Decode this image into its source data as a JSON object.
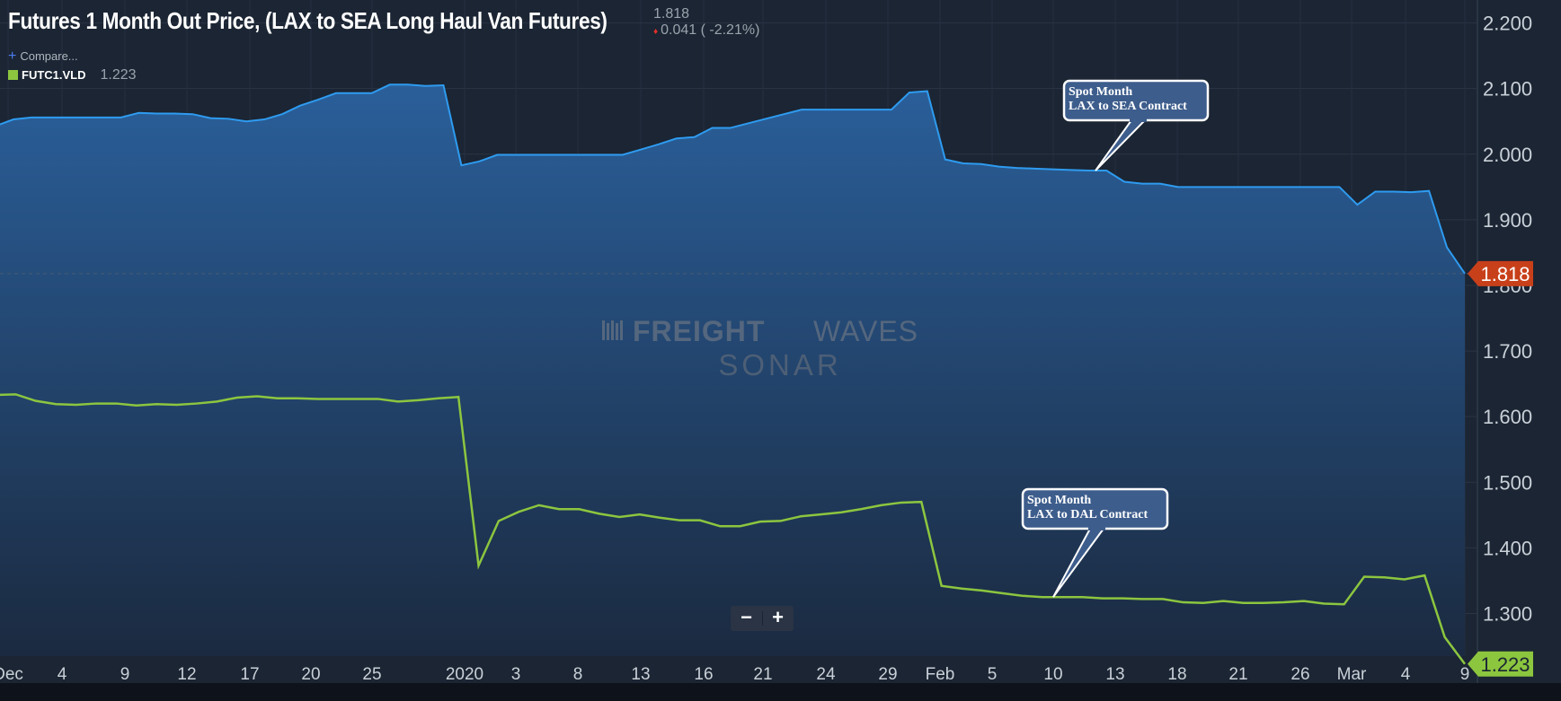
{
  "header": {
    "title": "Futures 1 Month Out Price, (LAX to SEA Long Haul Van Futures)",
    "last_price": "1.818",
    "change": "0.041 ( -2.21%)",
    "change_icon": "down-triangle-icon",
    "compare_label": "Compare...",
    "compare_icon": "plus-icon"
  },
  "legend": {
    "symbol": "FUTC1.VLD",
    "value": "1.223",
    "color": "#8cc63f"
  },
  "watermark": {
    "line1_bold": "FREIGHT",
    "line1_light": "WAVES",
    "line2": "SONAR"
  },
  "zoom": {
    "minus": "−",
    "plus": "+"
  },
  "chart_data": {
    "type": "area",
    "title": "Futures 1 Month Out Price, (LAX to SEA Long Haul Van Futures)",
    "ylim": [
      1.235,
      2.235
    ],
    "yticks": [
      1.3,
      1.4,
      1.5,
      1.6,
      1.7,
      1.8,
      1.9,
      2.0,
      2.1,
      2.2
    ],
    "ytick_labels": [
      "1.300",
      "1.400",
      "1.500",
      "1.600",
      "1.700",
      "1.800",
      "1.900",
      "2.000",
      "2.100",
      "2.200"
    ],
    "xtick_labels": [
      "Dec",
      "4",
      "9",
      "12",
      "17",
      "20",
      "25",
      "2020",
      "3",
      "8",
      "13",
      "16",
      "21",
      "24",
      "29",
      "Feb",
      "5",
      "10",
      "13",
      "18",
      "21",
      "26",
      "Mar",
      "4",
      "9"
    ],
    "grid": true,
    "colors": {
      "primary": "#2e9bf0",
      "secondary": "#8cc63f",
      "last_price_label": "#c8401a",
      "area_top": "#2a5f9a",
      "area_bottom": "#1b2a40"
    },
    "series": [
      {
        "role": "primary",
        "values": [
          2.043,
          2.053,
          2.056,
          2.056,
          2.056,
          2.056,
          2.056,
          2.056,
          2.063,
          2.062,
          2.062,
          2.061,
          2.055,
          2.054,
          2.05,
          2.053,
          2.061,
          2.074,
          2.083,
          2.093,
          2.093,
          2.093,
          2.106,
          2.106,
          2.104,
          2.105,
          1.983,
          1.989,
          1.999,
          1.999,
          1.999,
          1.999,
          1.999,
          1.999,
          1.999,
          1.999,
          2.007,
          2.015,
          2.024,
          2.026,
          2.04,
          2.04,
          2.047,
          2.054,
          2.061,
          2.068,
          2.068,
          2.068,
          2.068,
          2.068,
          2.068,
          2.094,
          2.096,
          1.992,
          1.986,
          1.985,
          1.981,
          1.979,
          1.978,
          1.977,
          1.976,
          1.975,
          1.975,
          1.958,
          1.955,
          1.955,
          1.95,
          1.95,
          1.95,
          1.95,
          1.95,
          1.95,
          1.95,
          1.95,
          1.95,
          1.95,
          1.923,
          1.943,
          1.943,
          1.942,
          1.944,
          1.858,
          1.818
        ]
      },
      {
        "role": "secondary",
        "values": [
          1.633,
          1.634,
          1.624,
          1.619,
          1.618,
          1.62,
          1.62,
          1.617,
          1.619,
          1.618,
          1.62,
          1.623,
          1.629,
          1.631,
          1.628,
          1.628,
          1.627,
          1.627,
          1.627,
          1.627,
          1.623,
          1.625,
          1.628,
          1.63,
          1.373,
          1.441,
          1.455,
          1.465,
          1.459,
          1.459,
          1.452,
          1.447,
          1.451,
          1.446,
          1.442,
          1.442,
          1.433,
          1.433,
          1.44,
          1.441,
          1.448,
          1.451,
          1.454,
          1.459,
          1.465,
          1.469,
          1.47,
          1.342,
          1.338,
          1.335,
          1.331,
          1.327,
          1.325,
          1.325,
          1.325,
          1.323,
          1.323,
          1.322,
          1.322,
          1.317,
          1.316,
          1.319,
          1.316,
          1.316,
          1.317,
          1.319,
          1.315,
          1.314,
          1.356,
          1.355,
          1.352,
          1.358,
          1.264,
          1.223
        ]
      }
    ],
    "last_labels": [
      "1.818",
      "1.223"
    ],
    "annotations": [
      {
        "lines": [
          "Spot Month",
          "LAX to SEA Contract"
        ],
        "series": 0,
        "x_index": 62
      },
      {
        "lines": [
          "Spot Month",
          "LAX to DAL Contract"
        ],
        "series": 1,
        "x_index": 52
      }
    ]
  }
}
